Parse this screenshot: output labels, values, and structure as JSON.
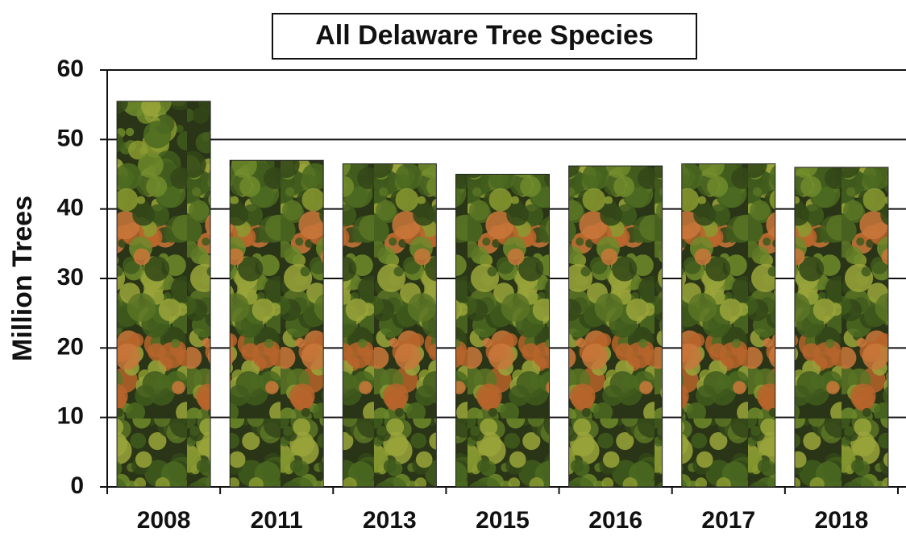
{
  "chart_data": {
    "type": "bar",
    "title": "All Delaware Tree Species",
    "y_label": "Million Trees",
    "categories": [
      "2008",
      "2011",
      "2013",
      "2015",
      "2016",
      "2017",
      "2018"
    ],
    "values": [
      55.5,
      47,
      46.5,
      45,
      46.2,
      46.5,
      46
    ],
    "ylim": [
      0,
      60
    ],
    "yticks": [
      0,
      10,
      20,
      30,
      40,
      50,
      60
    ],
    "grid": true
  }
}
